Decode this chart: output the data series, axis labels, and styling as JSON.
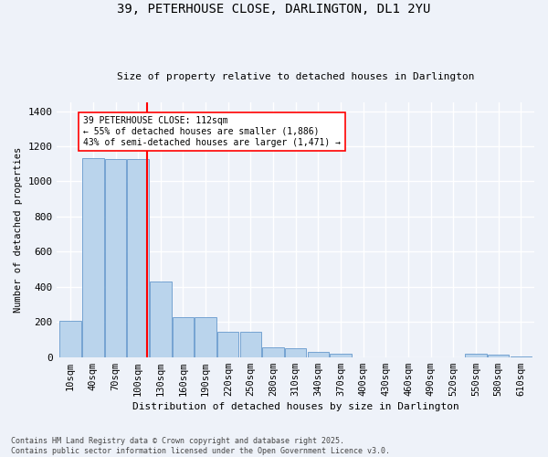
{
  "title": "39, PETERHOUSE CLOSE, DARLINGTON, DL1 2YU",
  "subtitle": "Size of property relative to detached houses in Darlington",
  "xlabel": "Distribution of detached houses by size in Darlington",
  "ylabel": "Number of detached properties",
  "categories": [
    "10sqm",
    "40sqm",
    "70sqm",
    "100sqm",
    "130sqm",
    "160sqm",
    "190sqm",
    "220sqm",
    "250sqm",
    "280sqm",
    "310sqm",
    "340sqm",
    "370sqm",
    "400sqm",
    "430sqm",
    "460sqm",
    "490sqm",
    "520sqm",
    "550sqm",
    "580sqm",
    "610sqm"
  ],
  "values": [
    205,
    1135,
    1130,
    1130,
    430,
    225,
    225,
    145,
    145,
    55,
    50,
    30,
    20,
    0,
    0,
    0,
    0,
    0,
    20,
    15,
    5
  ],
  "bar_color": "#bad4ec",
  "bar_edge_color": "#6699cc",
  "vline_color": "red",
  "vline_label_title": "39 PETERHOUSE CLOSE: 112sqm",
  "vline_label_line2": "← 55% of detached houses are smaller (1,886)",
  "vline_label_line3": "43% of semi-detached houses are larger (1,471) →",
  "ylim": [
    0,
    1450
  ],
  "yticks": [
    0,
    200,
    400,
    600,
    800,
    1000,
    1200,
    1400
  ],
  "background_color": "#eef2f9",
  "grid_color": "#ffffff",
  "footnote": "Contains HM Land Registry data © Crown copyright and database right 2025.\nContains public sector information licensed under the Open Government Licence v3.0."
}
